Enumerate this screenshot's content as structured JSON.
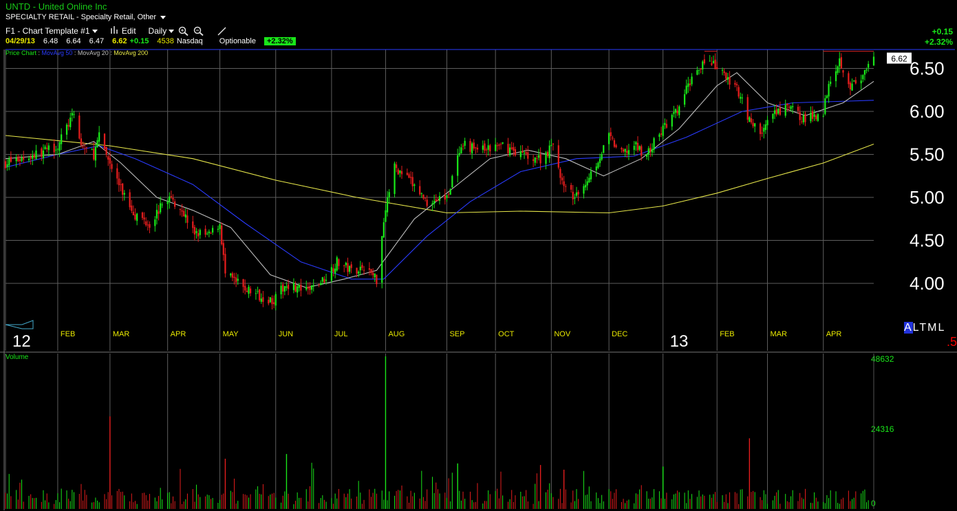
{
  "header": {
    "symbol": "UNTD",
    "company": "United Online Inc",
    "sector": "SPECIALTY RETAIL",
    "industry": "Specialty Retail, Other",
    "template": "F1 - Chart Template #1",
    "edit_label": "Edit",
    "period": "Daily",
    "date": "04/29/13",
    "open": "6.48",
    "high": "6.64",
    "low": "6.47",
    "last": "6.62",
    "change": "+0.15",
    "volume": "4538",
    "exchange": "Nasdaq",
    "optionable": "Optionable",
    "change_pct": "+2.32%"
  },
  "right_panel": {
    "change": "+0.15",
    "change_pct": "+2.32%",
    "altml_selected": "A",
    "altml_rest": "LTML",
    "scale_note": ".5"
  },
  "legend": {
    "price_chart": "Price Chart",
    "ma50": "MovAvg 50",
    "ma20": "MovAvg 20",
    "ma200": "MovAvg 200"
  },
  "colors": {
    "up": "#19e619",
    "down": "#e41d1d",
    "ma20": "#bdbdbd",
    "ma50": "#2a3bff",
    "ma200": "#e6e64a",
    "grid": "#5e5e5e",
    "resistance": "#cc2222",
    "top_line": "#2a3bff"
  },
  "volume_panel": {
    "label": "Volume",
    "ticks": [
      "48632",
      "24316",
      "0"
    ],
    "max": 48632
  },
  "chart_data": {
    "type": "candlestick",
    "current_price_label": "6.62",
    "y_ticks": [
      4.0,
      4.5,
      5.0,
      5.5,
      6.0,
      6.5
    ],
    "y_tick_labels": [
      "4.00",
      "4.50",
      "5.00",
      "5.50",
      "6.00",
      "6.50"
    ],
    "ylim": [
      3.6,
      6.72
    ],
    "x_start": "2012-01-03",
    "x_end": "2013-04-29",
    "x_labels": [
      {
        "label": "12",
        "kind": "year",
        "date": "2012-01-03"
      },
      {
        "label": "FEB",
        "kind": "month",
        "date": "2012-02-01"
      },
      {
        "label": "MAR",
        "kind": "month",
        "date": "2012-03-01"
      },
      {
        "label": "APR",
        "kind": "month",
        "date": "2012-04-02"
      },
      {
        "label": "MAY",
        "kind": "month",
        "date": "2012-05-01"
      },
      {
        "label": "JUN",
        "kind": "month",
        "date": "2012-06-01"
      },
      {
        "label": "JUL",
        "kind": "month",
        "date": "2012-07-02"
      },
      {
        "label": "AUG",
        "kind": "month",
        "date": "2012-08-01"
      },
      {
        "label": "SEP",
        "kind": "month",
        "date": "2012-09-04"
      },
      {
        "label": "OCT",
        "kind": "month",
        "date": "2012-10-01"
      },
      {
        "label": "NOV",
        "kind": "month",
        "date": "2012-11-01"
      },
      {
        "label": "DEC",
        "kind": "month",
        "date": "2012-12-03"
      },
      {
        "label": "13",
        "kind": "year",
        "date": "2013-01-02"
      },
      {
        "label": "FEB",
        "kind": "month",
        "date": "2013-02-01"
      },
      {
        "label": "MAR",
        "kind": "month",
        "date": "2013-03-01"
      },
      {
        "label": "APR",
        "kind": "month",
        "date": "2013-04-01"
      }
    ],
    "close_path": [
      [
        "2012-01-03",
        5.4
      ],
      [
        "2012-01-20",
        5.5
      ],
      [
        "2012-02-01",
        5.6
      ],
      [
        "2012-02-08",
        5.9
      ],
      [
        "2012-02-10",
        5.95
      ],
      [
        "2012-02-14",
        5.6
      ],
      [
        "2012-02-21",
        5.5
      ],
      [
        "2012-02-24",
        5.7
      ],
      [
        "2012-03-01",
        5.4
      ],
      [
        "2012-03-07",
        5.1
      ],
      [
        "2012-03-15",
        4.8
      ],
      [
        "2012-03-23",
        4.7
      ],
      [
        "2012-04-02",
        5.0
      ],
      [
        "2012-04-09",
        4.9
      ],
      [
        "2012-04-16",
        4.6
      ],
      [
        "2012-04-25",
        4.55
      ],
      [
        "2012-05-01",
        4.7
      ],
      [
        "2012-05-04",
        4.1
      ],
      [
        "2012-05-14",
        3.95
      ],
      [
        "2012-05-24",
        3.85
      ],
      [
        "2012-05-31",
        3.8
      ],
      [
        "2012-06-07",
        4.0
      ],
      [
        "2012-06-18",
        3.9
      ],
      [
        "2012-06-28",
        4.05
      ],
      [
        "2012-07-05",
        4.25
      ],
      [
        "2012-07-13",
        4.15
      ],
      [
        "2012-07-20",
        4.2
      ],
      [
        "2012-07-27",
        4.05
      ],
      [
        "2012-08-01",
        4.9
      ],
      [
        "2012-08-06",
        5.35
      ],
      [
        "2012-08-14",
        5.2
      ],
      [
        "2012-08-24",
        4.95
      ],
      [
        "2012-09-04",
        5.0
      ],
      [
        "2012-09-10",
        5.45
      ],
      [
        "2012-09-14",
        5.6
      ],
      [
        "2012-09-25",
        5.55
      ],
      [
        "2012-10-05",
        5.6
      ],
      [
        "2012-10-16",
        5.5
      ],
      [
        "2012-10-26",
        5.45
      ],
      [
        "2012-11-02",
        5.6
      ],
      [
        "2012-11-08",
        5.1
      ],
      [
        "2012-11-15",
        5.0
      ],
      [
        "2012-11-26",
        5.4
      ],
      [
        "2012-12-03",
        5.7
      ],
      [
        "2012-12-10",
        5.5
      ],
      [
        "2012-12-17",
        5.6
      ],
      [
        "2012-12-24",
        5.5
      ],
      [
        "2013-01-02",
        5.8
      ],
      [
        "2013-01-10",
        6.0
      ],
      [
        "2013-01-18",
        6.4
      ],
      [
        "2013-01-25",
        6.6
      ],
      [
        "2013-02-01",
        6.5
      ],
      [
        "2013-02-08",
        6.35
      ],
      [
        "2013-02-14",
        6.2
      ],
      [
        "2013-02-19",
        5.9
      ],
      [
        "2013-02-25",
        5.75
      ],
      [
        "2013-03-04",
        5.95
      ],
      [
        "2013-03-13",
        6.05
      ],
      [
        "2013-03-22",
        5.9
      ],
      [
        "2013-04-01",
        6.0
      ],
      [
        "2013-04-04",
        6.35
      ],
      [
        "2013-04-10",
        6.6
      ],
      [
        "2013-04-16",
        6.3
      ],
      [
        "2013-04-22",
        6.35
      ],
      [
        "2013-04-29",
        6.62
      ]
    ],
    "ma200_path": [
      [
        "2012-01-03",
        5.72
      ],
      [
        "2012-03-01",
        5.6
      ],
      [
        "2012-04-16",
        5.45
      ],
      [
        "2012-06-01",
        5.2
      ],
      [
        "2012-07-16",
        5.0
      ],
      [
        "2012-09-04",
        4.82
      ],
      [
        "2012-10-15",
        4.84
      ],
      [
        "2012-12-03",
        4.82
      ],
      [
        "2013-01-02",
        4.9
      ],
      [
        "2013-02-01",
        5.05
      ],
      [
        "2013-03-01",
        5.22
      ],
      [
        "2013-04-01",
        5.4
      ],
      [
        "2013-04-29",
        5.62
      ]
    ],
    "ma50_path": [
      [
        "2012-01-03",
        5.35
      ],
      [
        "2012-02-01",
        5.5
      ],
      [
        "2012-02-24",
        5.6
      ],
      [
        "2012-03-15",
        5.45
      ],
      [
        "2012-04-16",
        5.15
      ],
      [
        "2012-05-15",
        4.7
      ],
      [
        "2012-06-15",
        4.25
      ],
      [
        "2012-07-13",
        4.05
      ],
      [
        "2012-07-31",
        4.05
      ],
      [
        "2012-08-24",
        4.55
      ],
      [
        "2012-09-17",
        4.95
      ],
      [
        "2012-10-15",
        5.3
      ],
      [
        "2012-11-15",
        5.45
      ],
      [
        "2012-12-17",
        5.48
      ],
      [
        "2013-01-15",
        5.7
      ],
      [
        "2013-02-15",
        6.0
      ],
      [
        "2013-03-15",
        6.1
      ],
      [
        "2013-04-15",
        6.12
      ],
      [
        "2013-04-29",
        6.13
      ]
    ],
    "ma20_path": [
      [
        "2012-01-03",
        5.45
      ],
      [
        "2012-02-01",
        5.5
      ],
      [
        "2012-02-21",
        5.65
      ],
      [
        "2012-03-07",
        5.4
      ],
      [
        "2012-03-27",
        5.0
      ],
      [
        "2012-04-16",
        4.85
      ],
      [
        "2012-05-07",
        4.65
      ],
      [
        "2012-05-29",
        4.1
      ],
      [
        "2012-06-18",
        3.95
      ],
      [
        "2012-07-09",
        4.05
      ],
      [
        "2012-07-27",
        4.15
      ],
      [
        "2012-08-17",
        4.75
      ],
      [
        "2012-09-07",
        5.1
      ],
      [
        "2012-09-28",
        5.45
      ],
      [
        "2012-10-19",
        5.55
      ],
      [
        "2012-11-09",
        5.45
      ],
      [
        "2012-11-30",
        5.25
      ],
      [
        "2012-12-21",
        5.45
      ],
      [
        "2013-01-11",
        5.8
      ],
      [
        "2013-02-01",
        6.3
      ],
      [
        "2013-02-12",
        6.45
      ],
      [
        "2013-03-01",
        6.1
      ],
      [
        "2013-03-22",
        5.95
      ],
      [
        "2013-04-12",
        6.1
      ],
      [
        "2013-04-29",
        6.35
      ]
    ],
    "resistance_segments": [
      {
        "from": "2013-01-25",
        "to": "2013-02-01",
        "value": 6.7
      },
      {
        "from": "2013-04-01",
        "to": "2013-04-29",
        "value": 6.7
      }
    ],
    "volume_spikes": [
      {
        "date": "2012-03-01",
        "value": 29500,
        "dir": "down"
      },
      {
        "date": "2012-08-01",
        "value": 48600,
        "dir": "up"
      },
      {
        "date": "2012-05-04",
        "value": 16000,
        "dir": "down"
      },
      {
        "date": "2012-06-07",
        "value": 17500,
        "dir": "up"
      },
      {
        "date": "2013-02-19",
        "value": 22500,
        "dir": "down"
      },
      {
        "date": "2012-10-26",
        "value": 14000,
        "dir": "down"
      },
      {
        "date": "2013-01-02",
        "value": 13500,
        "dir": "up"
      },
      {
        "date": "2012-09-10",
        "value": 14500,
        "dir": "up"
      },
      {
        "date": "2012-11-08",
        "value": 12500,
        "dir": "down"
      }
    ]
  }
}
